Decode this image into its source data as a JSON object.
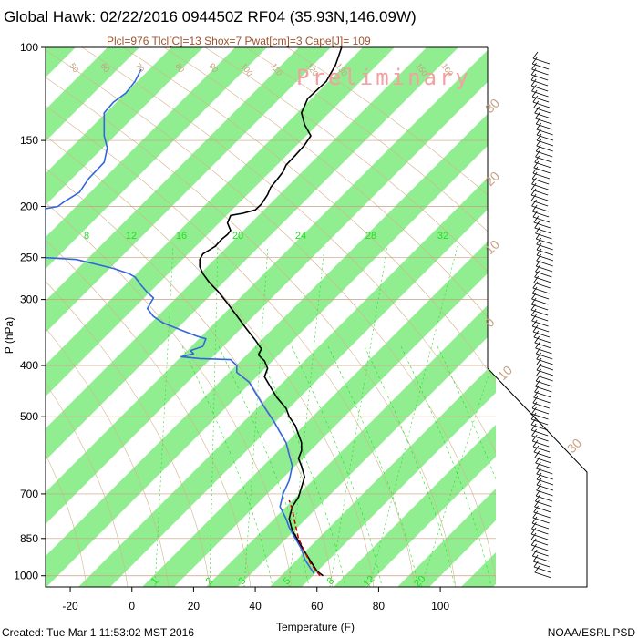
{
  "title": "Global Hawk: 02/22/2016 094450Z RF04 (35.93N,146.09W)",
  "subtitle": "Plcl=976 Tlcl[C]=13 Shox=7 Pwat[cm]=3 Cape[J]= 109",
  "watermark": "Preliminary",
  "footer_left": "Created: Tue Mar  1 11:53:02 MST 2016",
  "footer_right": "NOAA/ESRL PSD",
  "colors": {
    "temp_band": "#90ee90",
    "temperature": "#000000",
    "dewpoint": "#3366dd",
    "parcel": "#cc0000",
    "dry_adiabat": "#d2b48c",
    "mixing_ratio": "#22dd22"
  },
  "chart_data": {
    "type": "line",
    "xlabel": "Temperature (F)",
    "ylabel": "P (hPa)",
    "x_ticks": [
      -20,
      0,
      20,
      40,
      60,
      80,
      100
    ],
    "y_ticks": [
      100,
      150,
      200,
      250,
      300,
      400,
      500,
      700,
      850,
      1000
    ],
    "xlim": [
      -28,
      118
    ],
    "ylim": [
      1050,
      100
    ],
    "y_scale": "log",
    "temperature_band_labels": [
      "30",
      "20",
      "10",
      "0",
      "10",
      "30"
    ],
    "mixing_ratio_labels_top": [
      "8",
      "12",
      "16",
      "20",
      "24",
      "28",
      "32"
    ],
    "mixing_ratio_labels_bottom": [
      "1",
      "2",
      "3",
      "5",
      "8",
      "12",
      "20"
    ],
    "theta_labels": [
      "50",
      "60",
      "70",
      "80",
      "90",
      "100",
      "110",
      "120",
      "130",
      "150",
      "160"
    ],
    "series": [
      {
        "name": "Temperature",
        "points": [
          [
            68,
            100
          ],
          [
            66,
            108
          ],
          [
            63,
            116
          ],
          [
            57,
            125
          ],
          [
            55,
            133
          ],
          [
            56,
            140
          ],
          [
            58,
            147
          ],
          [
            56,
            153
          ],
          [
            53,
            160
          ],
          [
            50,
            167
          ],
          [
            49,
            172
          ],
          [
            47,
            178
          ],
          [
            45,
            184
          ],
          [
            44,
            190
          ],
          [
            42,
            198
          ],
          [
            40,
            203
          ],
          [
            36,
            206
          ],
          [
            32,
            208
          ],
          [
            31,
            215
          ],
          [
            32,
            222
          ],
          [
            31,
            226
          ],
          [
            29,
            231
          ],
          [
            27,
            238
          ],
          [
            25,
            242
          ],
          [
            23,
            246
          ],
          [
            22,
            252
          ],
          [
            22,
            260
          ],
          [
            23,
            268
          ],
          [
            25,
            278
          ],
          [
            28,
            290
          ],
          [
            31,
            305
          ],
          [
            34,
            322
          ],
          [
            37,
            340
          ],
          [
            40,
            358
          ],
          [
            42,
            372
          ],
          [
            41,
            382
          ],
          [
            43,
            392
          ],
          [
            44,
            405
          ],
          [
            43,
            420
          ],
          [
            45,
            440
          ],
          [
            47,
            460
          ],
          [
            50,
            482
          ],
          [
            51,
            500
          ],
          [
            53,
            520
          ],
          [
            54,
            540
          ],
          [
            55,
            560
          ],
          [
            55,
            580
          ],
          [
            54,
            600
          ],
          [
            55,
            620
          ],
          [
            56,
            650
          ],
          [
            55,
            680
          ],
          [
            54,
            710
          ],
          [
            52,
            740
          ],
          [
            51,
            780
          ],
          [
            52,
            820
          ],
          [
            54,
            860
          ],
          [
            56,
            900
          ],
          [
            58,
            940
          ],
          [
            60,
            980
          ],
          [
            62,
            1000
          ]
        ]
      },
      {
        "name": "Dewpoint",
        "points": [
          [
            3,
            110
          ],
          [
            1,
            116
          ],
          [
            -2,
            122
          ],
          [
            -6,
            127
          ],
          [
            -9,
            133
          ],
          [
            -9,
            140
          ],
          [
            -9,
            147
          ],
          [
            -8,
            155
          ],
          [
            -9,
            165
          ],
          [
            -14,
            177
          ],
          [
            -17,
            188
          ],
          [
            -22,
            196
          ],
          [
            -24,
            200
          ],
          [
            -28,
            202
          ],
          [
            -28,
            250
          ],
          [
            -18,
            252
          ],
          [
            -6,
            262
          ],
          [
            -1,
            268
          ],
          [
            1,
            272
          ],
          [
            3,
            282
          ],
          [
            5,
            291
          ],
          [
            7,
            298
          ],
          [
            5,
            312
          ],
          [
            7,
            323
          ],
          [
            10,
            332
          ],
          [
            16,
            343
          ],
          [
            21,
            352
          ],
          [
            24,
            356
          ],
          [
            23,
            368
          ],
          [
            19,
            375
          ],
          [
            20,
            380
          ],
          [
            16,
            385
          ],
          [
            18,
            386
          ],
          [
            22,
            388
          ],
          [
            32,
            390
          ],
          [
            34,
            400
          ],
          [
            34,
            412
          ],
          [
            38,
            430
          ],
          [
            40,
            450
          ],
          [
            42,
            470
          ],
          [
            44,
            490
          ],
          [
            46,
            510
          ],
          [
            48,
            535
          ],
          [
            50,
            560
          ],
          [
            51,
            590
          ],
          [
            52,
            620
          ],
          [
            51,
            660
          ],
          [
            49,
            700
          ],
          [
            48,
            740
          ],
          [
            50,
            780
          ],
          [
            51,
            810
          ],
          [
            53,
            850
          ],
          [
            55,
            890
          ],
          [
            56,
            930
          ],
          [
            58,
            970
          ],
          [
            59,
            990
          ]
        ]
      },
      {
        "name": "Parcel",
        "points": [
          [
            61,
            1000
          ],
          [
            58,
            950
          ],
          [
            56,
            900
          ],
          [
            54,
            850
          ],
          [
            53,
            800
          ],
          [
            52,
            750
          ],
          [
            51,
            720
          ]
        ]
      }
    ],
    "wind_barbs": "right-side profile"
  }
}
